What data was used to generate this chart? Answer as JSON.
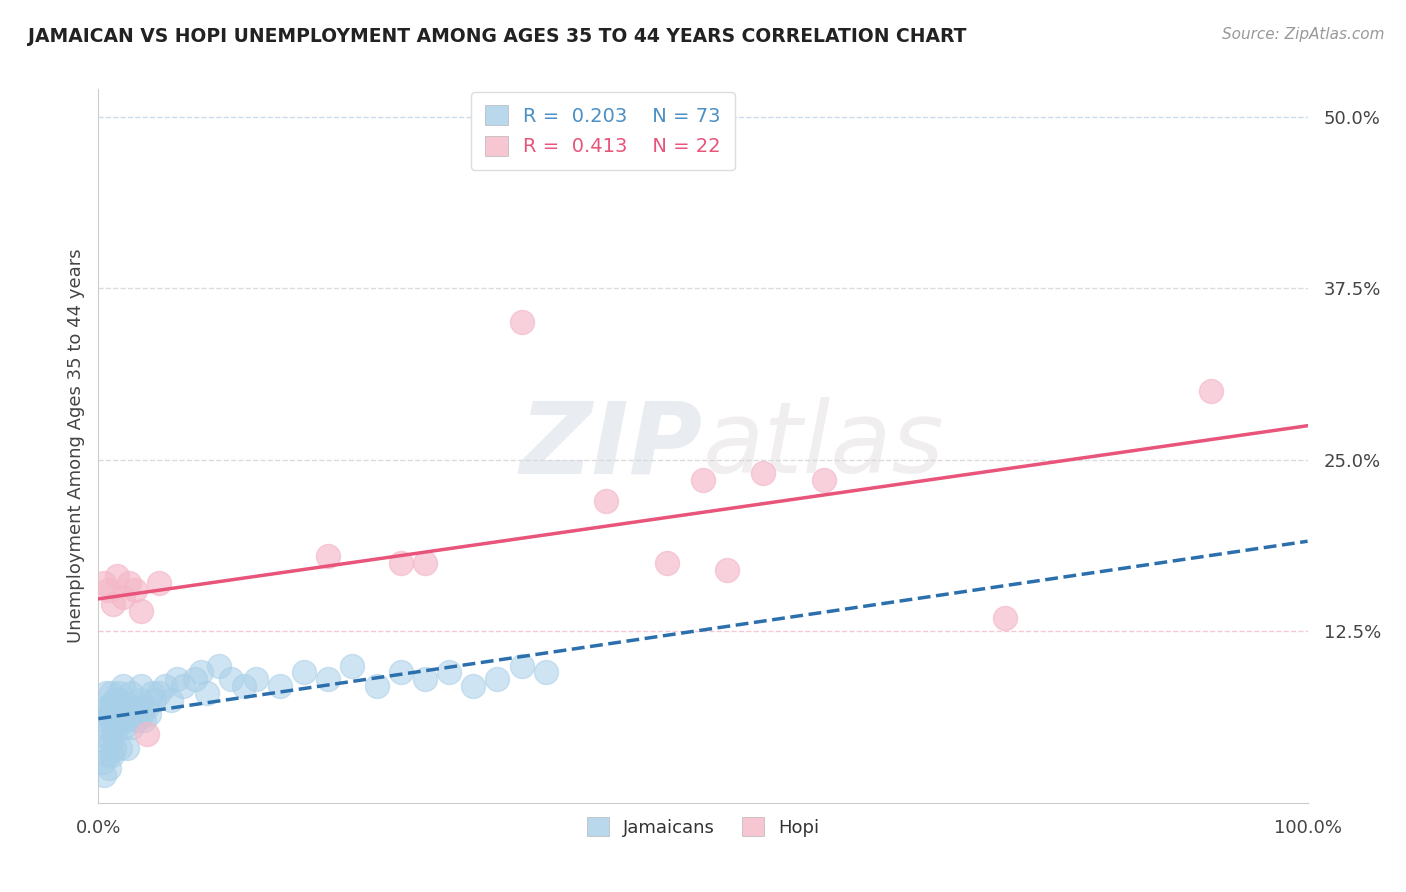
{
  "title": "JAMAICAN VS HOPI UNEMPLOYMENT AMONG AGES 35 TO 44 YEARS CORRELATION CHART",
  "source": "Source: ZipAtlas.com",
  "ylabel": "Unemployment Among Ages 35 to 44 years",
  "xlim": [
    0.0,
    1.0
  ],
  "ylim": [
    0.0,
    0.52
  ],
  "x_ticks": [
    0.0,
    0.125,
    0.25,
    0.375,
    0.5,
    0.625,
    0.75,
    0.875,
    1.0
  ],
  "x_tick_labels": [
    "0.0%",
    "",
    "",
    "",
    "",
    "",
    "",
    "",
    "100.0%"
  ],
  "y_ticks": [
    0.0,
    0.125,
    0.25,
    0.375,
    0.5
  ],
  "y_tick_labels": [
    "",
    "12.5%",
    "25.0%",
    "37.5%",
    "50.0%"
  ],
  "jamaican_color": "#a8cfe8",
  "hopi_color": "#f4b8c8",
  "trendline_jamaican_color": "#2c6fad",
  "trendline_hopi_color": "#e8547a",
  "grid_color_blue": "#c5d8ea",
  "grid_color_pink": "#f4c4d0",
  "grid_color_gray": "#d8d8d8",
  "background_color": "#ffffff",
  "watermark_zip": "ZIP",
  "watermark_atlas": "atlas",
  "jamaican_x": [
    0.003,
    0.004,
    0.005,
    0.005,
    0.006,
    0.006,
    0.007,
    0.007,
    0.008,
    0.008,
    0.009,
    0.009,
    0.01,
    0.01,
    0.01,
    0.011,
    0.011,
    0.012,
    0.012,
    0.013,
    0.013,
    0.014,
    0.015,
    0.015,
    0.016,
    0.017,
    0.018,
    0.018,
    0.019,
    0.02,
    0.02,
    0.021,
    0.022,
    0.023,
    0.024,
    0.025,
    0.026,
    0.027,
    0.028,
    0.03,
    0.032,
    0.034,
    0.035,
    0.036,
    0.038,
    0.04,
    0.042,
    0.044,
    0.046,
    0.05,
    0.055,
    0.06,
    0.065,
    0.07,
    0.08,
    0.085,
    0.09,
    0.1,
    0.11,
    0.12,
    0.13,
    0.15,
    0.17,
    0.19,
    0.21,
    0.23,
    0.25,
    0.27,
    0.29,
    0.31,
    0.33,
    0.35,
    0.37
  ],
  "jamaican_y": [
    0.05,
    0.03,
    0.06,
    0.02,
    0.04,
    0.08,
    0.055,
    0.07,
    0.035,
    0.065,
    0.025,
    0.07,
    0.045,
    0.06,
    0.08,
    0.035,
    0.07,
    0.05,
    0.065,
    0.04,
    0.075,
    0.06,
    0.055,
    0.075,
    0.065,
    0.08,
    0.04,
    0.075,
    0.06,
    0.065,
    0.085,
    0.055,
    0.07,
    0.06,
    0.04,
    0.07,
    0.065,
    0.08,
    0.055,
    0.07,
    0.06,
    0.075,
    0.085,
    0.065,
    0.06,
    0.07,
    0.065,
    0.08,
    0.075,
    0.08,
    0.085,
    0.075,
    0.09,
    0.085,
    0.09,
    0.095,
    0.08,
    0.1,
    0.09,
    0.085,
    0.09,
    0.085,
    0.095,
    0.09,
    0.1,
    0.085,
    0.095,
    0.09,
    0.095,
    0.085,
    0.09,
    0.1,
    0.095
  ],
  "hopi_x": [
    0.005,
    0.008,
    0.012,
    0.015,
    0.02,
    0.025,
    0.03,
    0.035,
    0.04,
    0.05,
    0.19,
    0.25,
    0.27,
    0.35,
    0.42,
    0.47,
    0.5,
    0.52,
    0.55,
    0.6,
    0.75,
    0.92
  ],
  "hopi_y": [
    0.16,
    0.155,
    0.145,
    0.165,
    0.15,
    0.16,
    0.155,
    0.14,
    0.05,
    0.16,
    0.18,
    0.175,
    0.175,
    0.35,
    0.22,
    0.175,
    0.235,
    0.17,
    0.24,
    0.235,
    0.135,
    0.3
  ]
}
